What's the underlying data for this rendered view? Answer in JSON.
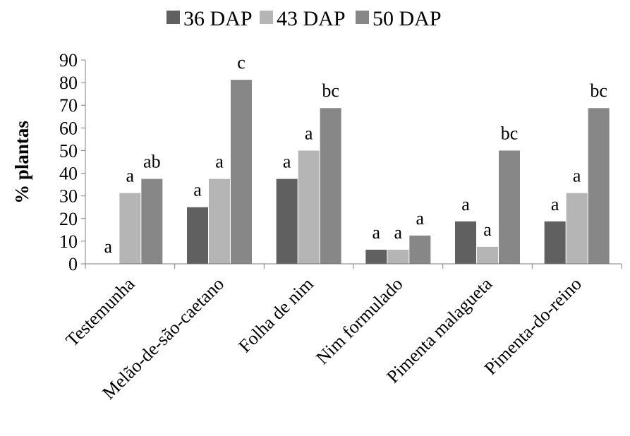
{
  "chart_data": {
    "type": "bar",
    "title": "",
    "xlabel": "",
    "ylabel": "% plantas",
    "ylim": [
      0,
      90
    ],
    "yticks": [
      0,
      10,
      20,
      30,
      40,
      50,
      60,
      70,
      80,
      90
    ],
    "grid": false,
    "legend_position": "top",
    "categories": [
      "Testemunha",
      "Melão-de-são-caetano",
      "Folha de nim",
      "Nim formulado",
      "Pimenta malagueta",
      "Pimenta-do-reino"
    ],
    "series": [
      {
        "name": "36 DAP",
        "color": "#606060",
        "values": [
          0,
          25,
          37.5,
          6.25,
          18.75,
          18.75
        ],
        "letters": [
          "a",
          "a",
          "a",
          "a",
          "a",
          "a"
        ]
      },
      {
        "name": "43 DAP",
        "color": "#b5b5b5",
        "values": [
          31.25,
          37.5,
          50,
          6.25,
          7.5,
          31.25
        ],
        "letters": [
          "a",
          "a",
          "a",
          "a",
          "a",
          "a"
        ]
      },
      {
        "name": "50 DAP",
        "color": "#878787",
        "values": [
          37.5,
          81.25,
          68.75,
          12.5,
          50,
          68.75
        ],
        "letters": [
          "ab",
          "c",
          "bc",
          "a",
          "bc",
          "bc"
        ]
      }
    ]
  }
}
